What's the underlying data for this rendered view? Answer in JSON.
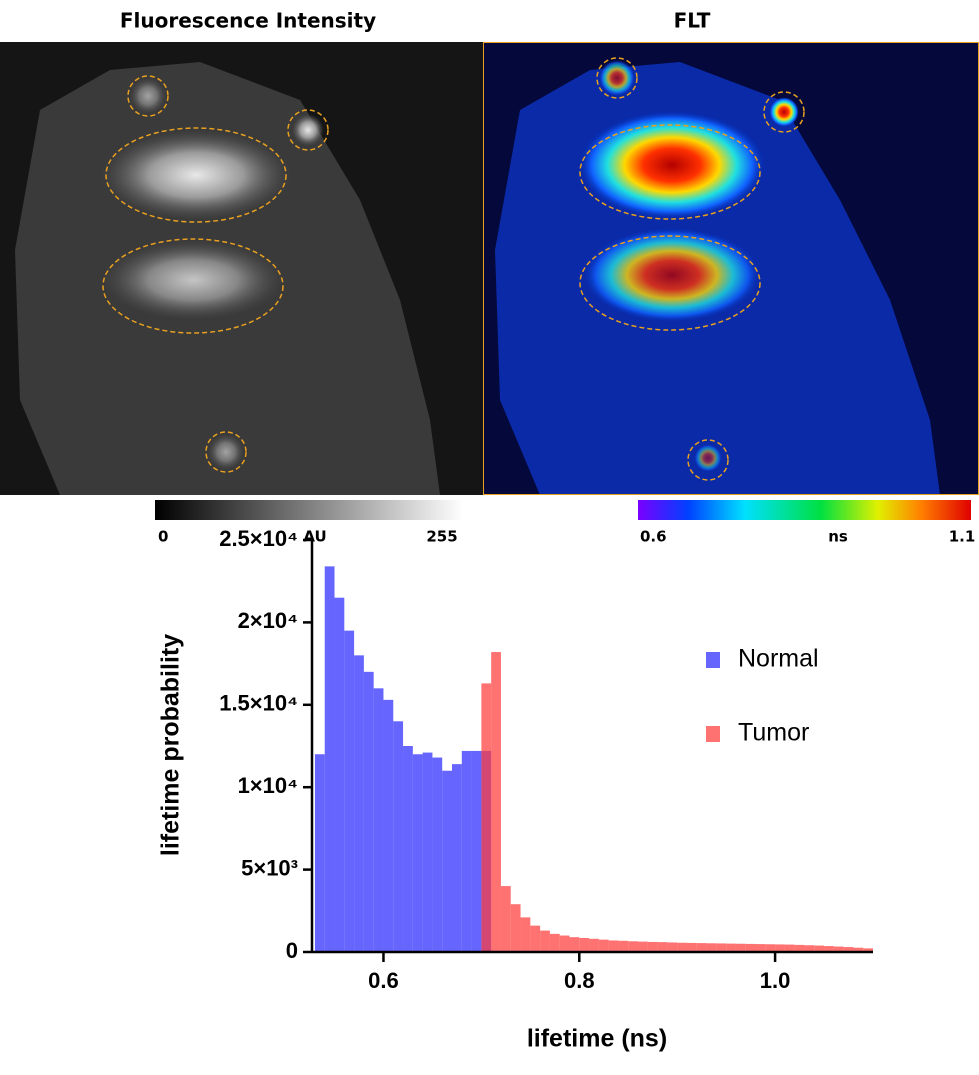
{
  "panels": [
    {
      "title": "Fluorescence Intensity",
      "colorbar_labels": [
        "0",
        "AU",
        "255"
      ]
    },
    {
      "title": "FLT",
      "colorbar_labels": [
        "0.6",
        "ns",
        "1.1"
      ]
    }
  ],
  "chart_data": {
    "type": "histogram",
    "x_label": "lifetime (ns)",
    "y_label": "lifetime probability",
    "bins": [
      0.53,
      0.54,
      0.55,
      0.56,
      0.57,
      0.58,
      0.59,
      0.6,
      0.61,
      0.62,
      0.63,
      0.64,
      0.65,
      0.66,
      0.67,
      0.68,
      0.69,
      0.7,
      0.71,
      0.72,
      0.73,
      0.74,
      0.75,
      0.76,
      0.77,
      0.78,
      0.79,
      0.8,
      0.81,
      0.82,
      0.83,
      0.84,
      0.85,
      0.86,
      0.87,
      0.88,
      0.89,
      0.9,
      0.91,
      0.92,
      0.93,
      0.94,
      0.95,
      0.96,
      0.97,
      0.98,
      0.99,
      1.0,
      1.01,
      1.02,
      1.03,
      1.04,
      1.05,
      1.06,
      1.07,
      1.08,
      1.09,
      1.1
    ],
    "series": [
      {
        "name": "Normal",
        "color": "#2b2bff",
        "values": [
          12000,
          23400,
          21500,
          19500,
          18000,
          17000,
          16000,
          15300,
          14000,
          12500,
          12000,
          12100,
          11800,
          11000,
          11400,
          12200,
          12200,
          12200,
          null,
          null,
          null,
          null,
          null,
          null,
          null,
          null,
          null,
          null,
          null,
          null,
          null,
          null,
          null,
          null,
          null,
          null,
          null,
          null,
          null,
          null,
          null,
          null,
          null,
          null,
          null,
          null,
          null,
          null,
          null,
          null,
          null,
          null,
          null,
          null,
          null,
          null,
          null
        ]
      },
      {
        "name": "Tumor",
        "color": "#ff3b3b",
        "values": [
          null,
          null,
          null,
          null,
          null,
          null,
          null,
          null,
          null,
          null,
          null,
          null,
          null,
          null,
          null,
          null,
          null,
          16300,
          18200,
          4000,
          2900,
          2100,
          1600,
          1300,
          1100,
          1000,
          900,
          850,
          800,
          750,
          700,
          680,
          650,
          630,
          610,
          600,
          580,
          560,
          550,
          540,
          530,
          520,
          510,
          500,
          490,
          480,
          470,
          460,
          450,
          430,
          410,
          390,
          360,
          330,
          300,
          260,
          220
        ]
      }
    ],
    "xlim": [
      0.527,
      1.1
    ],
    "xticks": [
      0.6,
      0.8,
      {
        "value": 1,
        "label": "1.0"
      }
    ],
    "ylim": [
      0,
      25000
    ],
    "yticks": [
      0,
      {
        "value": 5000,
        "label": "5×10³"
      },
      {
        "value": 10000,
        "label": "1×10⁴"
      },
      {
        "value": 15000,
        "label": "1.5×10⁴"
      },
      {
        "value": 20000,
        "label": "2×10⁴"
      },
      {
        "value": 25000,
        "label": "2.5×10⁴"
      }
    ],
    "legend": "upper right"
  }
}
